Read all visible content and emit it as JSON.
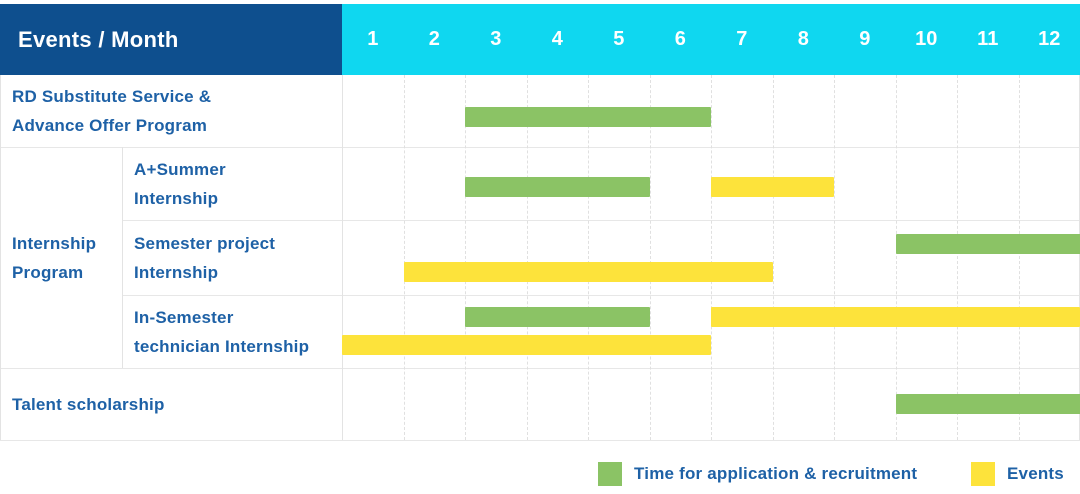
{
  "chart_data": {
    "type": "bar",
    "subtype": "gantt",
    "title": "Events / Month",
    "x_ticks": [
      "1",
      "2",
      "3",
      "4",
      "5",
      "6",
      "7",
      "8",
      "9",
      "10",
      "11",
      "12"
    ],
    "x_range": [
      1,
      12
    ],
    "grid": true,
    "legend_position": "bottom-right",
    "rows": [
      {
        "group": null,
        "label": "RD Substitute Service & Advance Offer Program",
        "label_lines": [
          "RD Substitute Service &",
          "Advance Offer Program"
        ],
        "bars": [
          {
            "series": "Time for application & recruitment",
            "key": "recruitment",
            "start_month": 3,
            "end_month": 6,
            "lane": 0
          }
        ]
      },
      {
        "group": "Internship Program",
        "label": "A+Summer Internship",
        "label_lines": [
          "A+Summer",
          "Internship"
        ],
        "bars": [
          {
            "series": "Time for application & recruitment",
            "key": "recruitment",
            "start_month": 3,
            "end_month": 5,
            "lane": 0
          },
          {
            "series": "Events",
            "key": "event",
            "start_month": 7,
            "end_month": 8,
            "lane": 0
          }
        ]
      },
      {
        "group": "Internship Program",
        "label": "Semester project Internship",
        "label_lines": [
          "Semester project",
          "Internship"
        ],
        "bars": [
          {
            "series": "Time for application & recruitment",
            "key": "recruitment",
            "start_month": 10,
            "end_month": 12,
            "lane": 0
          },
          {
            "series": "Events",
            "key": "event",
            "start_month": 2,
            "end_month": 7,
            "lane": 1
          }
        ]
      },
      {
        "group": "Internship Program",
        "label": "In-Semester technician Internship",
        "label_lines": [
          "In-Semester",
          "technician Internship"
        ],
        "bars": [
          {
            "series": "Time for application & recruitment",
            "key": "recruitment",
            "start_month": 3,
            "end_month": 5,
            "lane": 0
          },
          {
            "series": "Events",
            "key": "event",
            "start_month": 7,
            "end_month": 12,
            "lane": 0
          },
          {
            "series": "Events",
            "key": "event",
            "start_month": 1,
            "end_month": 6,
            "lane": 1
          }
        ]
      },
      {
        "group": null,
        "label": "Talent scholarship",
        "label_lines": [
          "Talent scholarship"
        ],
        "bars": [
          {
            "series": "Time for application & recruitment",
            "key": "recruitment",
            "start_month": 10,
            "end_month": 12,
            "lane": 0
          }
        ]
      }
    ],
    "group_label": "Internship Program",
    "group_label_lines": [
      "Internship",
      "Program"
    ],
    "legend": [
      {
        "key": "recruitment",
        "label": "Time for application & recruitment",
        "color": "#8bc365"
      },
      {
        "key": "event",
        "label": "Events",
        "color": "#fde33b"
      }
    ],
    "colors": {
      "recruitment": "#8bc365",
      "event": "#fde33b",
      "corner_header_bg": "#0e4f8e",
      "months_header_bg": "#0fd7f0",
      "header_text": "#ffffff",
      "label_text": "#1e61a6"
    }
  }
}
